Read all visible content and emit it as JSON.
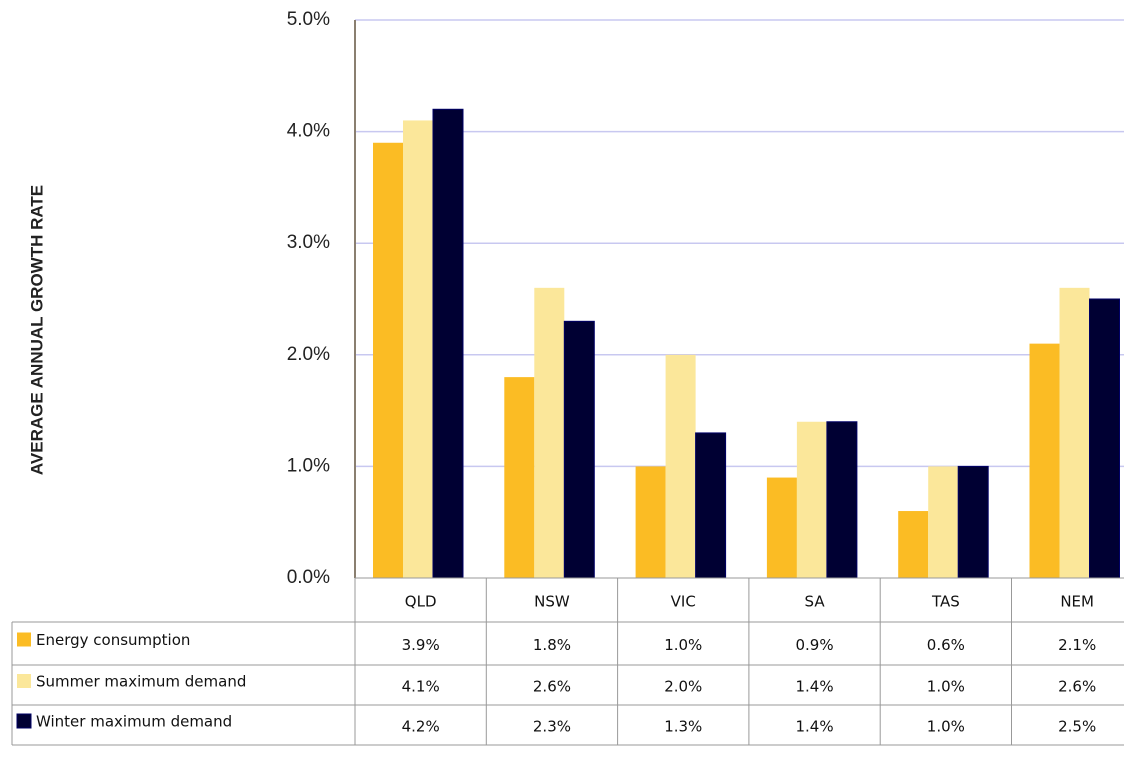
{
  "chart_data": {
    "type": "bar",
    "y_label": "AVERAGE ANNUAL GROWTH RATE",
    "categories": [
      "QLD",
      "NSW",
      "VIC",
      "SA",
      "TAS",
      "NEM"
    ],
    "series": [
      {
        "name": "Energy consumption",
        "color": "#fbbc24",
        "values": [
          3.9,
          1.8,
          1.0,
          0.9,
          0.6,
          2.1
        ],
        "value_labels": [
          "3.9%",
          "1.8%",
          "1.0%",
          "0.9%",
          "0.6%",
          "2.1%"
        ]
      },
      {
        "name": "Summer maximum demand",
        "color": "#fbe79a",
        "values": [
          4.1,
          2.6,
          2.0,
          1.4,
          1.0,
          2.6
        ],
        "value_labels": [
          "4.1%",
          "2.6%",
          "2.0%",
          "1.4%",
          "1.0%",
          "2.6%"
        ]
      },
      {
        "name": "Winter maximum demand",
        "color": "#000033",
        "values": [
          4.2,
          2.3,
          1.3,
          1.4,
          1.0,
          2.5
        ],
        "value_labels": [
          "4.2%",
          "2.3%",
          "1.3%",
          "1.4%",
          "1.0%",
          "2.5%"
        ]
      }
    ],
    "ylim": [
      0,
      5
    ],
    "yticks": [
      {
        "value": 0,
        "label": "0.0%"
      },
      {
        "value": 1,
        "label": "1.0%"
      },
      {
        "value": 2,
        "label": "2.0%"
      },
      {
        "value": 3,
        "label": "3.0%"
      },
      {
        "value": 4,
        "label": "4.0%"
      },
      {
        "value": 5,
        "label": "5.0%"
      }
    ],
    "grid": true,
    "data_table": true
  }
}
